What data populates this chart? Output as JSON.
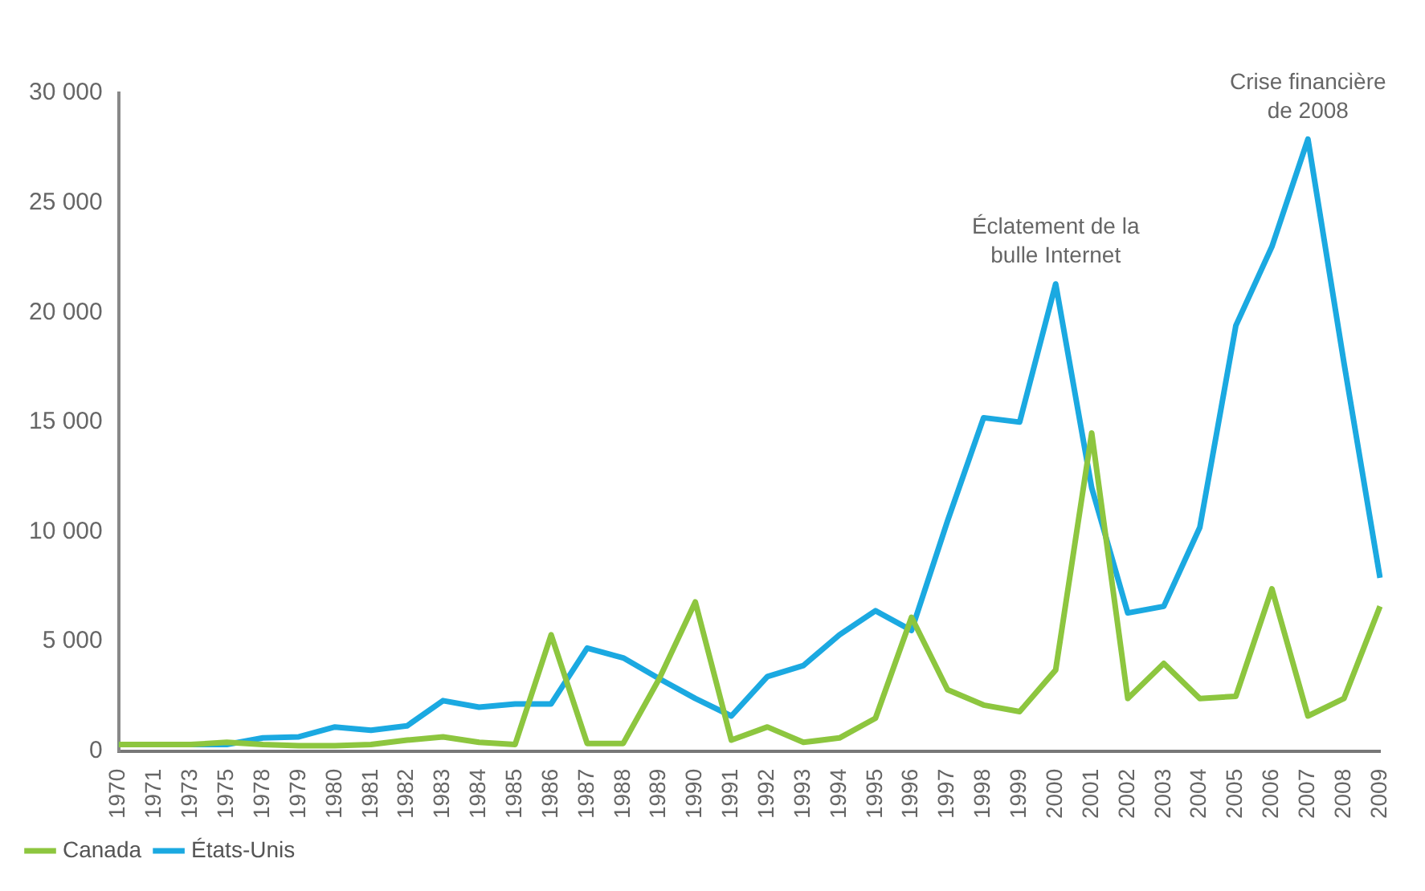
{
  "chart_data": {
    "type": "line",
    "categories": [
      "1970",
      "1971",
      "1973",
      "1975",
      "1978",
      "1979",
      "1980",
      "1981",
      "1982",
      "1983",
      "1984",
      "1985",
      "1986",
      "1987",
      "1988",
      "1989",
      "1990",
      "1991",
      "1992",
      "1993",
      "1994",
      "1995",
      "1996",
      "1997",
      "1998",
      "1999",
      "2000",
      "2001",
      "2002",
      "2003",
      "2004",
      "2005",
      "2006",
      "2007",
      "2008",
      "2009"
    ],
    "series": [
      {
        "name": "Canada",
        "color": "#8dc63f",
        "values": [
          300,
          300,
          300,
          400,
          300,
          250,
          250,
          300,
          500,
          650,
          400,
          300,
          5300,
          350,
          350,
          3300,
          6800,
          500,
          1100,
          400,
          600,
          1500,
          6100,
          2800,
          2100,
          1800,
          3700,
          14500,
          2400,
          4000,
          2400,
          2500,
          7400,
          1600,
          2400,
          6600
        ]
      },
      {
        "name": "États-Unis",
        "color": "#1ba9e1",
        "values": [
          300,
          300,
          300,
          300,
          600,
          650,
          1100,
          950,
          1150,
          2300,
          2000,
          2150,
          2150,
          4700,
          4250,
          3300,
          2400,
          1600,
          3400,
          3900,
          5300,
          6400,
          5500,
          10500,
          15200,
          15000,
          21300,
          12000,
          6300,
          6600,
          10200,
          19400,
          23000,
          27900,
          17700,
          7900
        ]
      }
    ],
    "ylim": [
      0,
      30000
    ],
    "yticks": [
      0,
      5000,
      10000,
      15000,
      20000,
      25000,
      30000
    ],
    "grid": false,
    "legend": "bottom left",
    "marker": "none",
    "line_style": "solid",
    "annotations": [
      {
        "text": "Éclatement de la bulle Internet",
        "x": "2000",
        "y": 21300
      },
      {
        "text": "Crise financière de 2008",
        "x": "2007",
        "y": 27900
      }
    ]
  }
}
